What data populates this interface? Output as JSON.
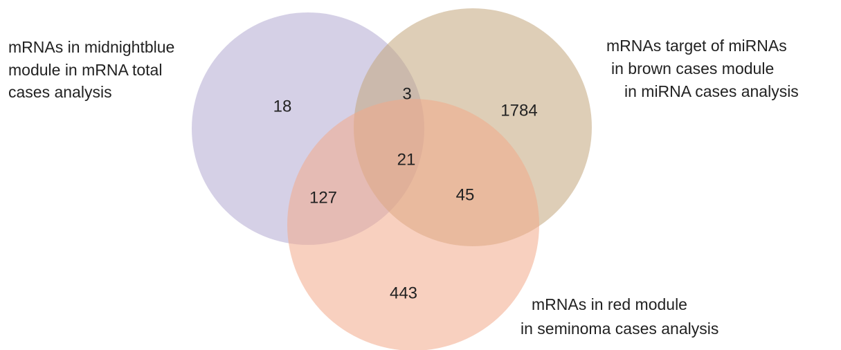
{
  "sets": [
    {
      "label_lines": [
        "mRNAs in midnightblue",
        "module in mRNA total",
        "cases analysis"
      ]
    },
    {
      "label_lines": [
        "mRNAs target of miRNAs",
        "in brown cases module",
        "in miRNA cases analysis"
      ]
    },
    {
      "label_lines": [
        "mRNAs in red module",
        "in seminoma cases analysis"
      ]
    }
  ],
  "regions": {
    "midnightblue_only": 18,
    "midnightblue_brown": 3,
    "brown_only": 1784,
    "all_three": 21,
    "midnightblue_red": 127,
    "brown_red": 45,
    "red_only": 443
  }
}
